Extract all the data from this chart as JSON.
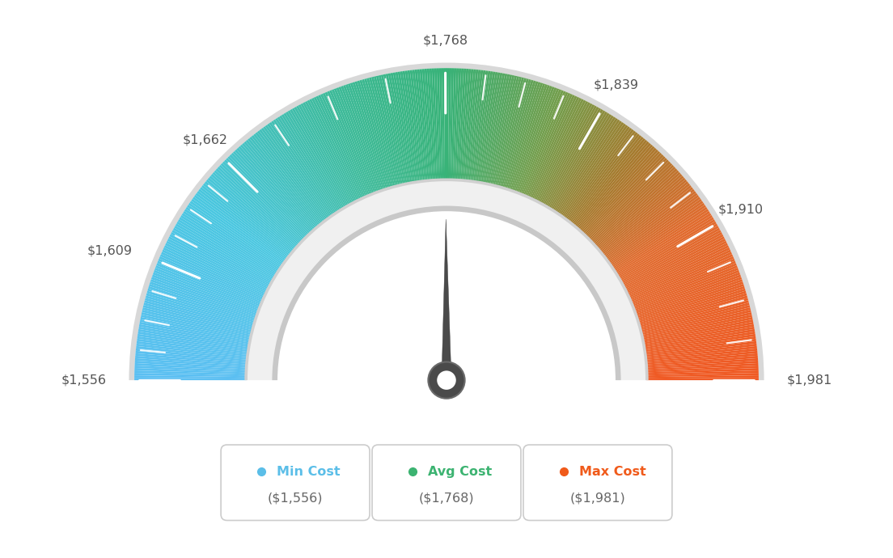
{
  "min_val": 1556,
  "avg_val": 1768,
  "max_val": 1981,
  "tick_labels": [
    "$1,556",
    "$1,609",
    "$1,662",
    "$1,768",
    "$1,839",
    "$1,910",
    "$1,981"
  ],
  "tick_values": [
    1556,
    1609,
    1662,
    1768,
    1839,
    1910,
    1981
  ],
  "legend_min_label": "Min Cost",
  "legend_avg_label": "Avg Cost",
  "legend_max_label": "Max Cost",
  "legend_min_val": "($1,556)",
  "legend_avg_val": "($1,768)",
  "legend_max_val": "($1,981)",
  "color_min": "#5bbee8",
  "color_avg": "#3cb371",
  "color_max": "#f05a1a",
  "background_color": "#ffffff",
  "color_stops": [
    [
      0.0,
      [
        0.36,
        0.75,
        0.95
      ]
    ],
    [
      0.2,
      [
        0.29,
        0.78,
        0.88
      ]
    ],
    [
      0.38,
      [
        0.24,
        0.73,
        0.6
      ]
    ],
    [
      0.5,
      [
        0.22,
        0.7,
        0.47
      ]
    ],
    [
      0.62,
      [
        0.45,
        0.62,
        0.3
      ]
    ],
    [
      0.72,
      [
        0.65,
        0.48,
        0.18
      ]
    ],
    [
      0.82,
      [
        0.88,
        0.42,
        0.18
      ]
    ],
    [
      1.0,
      [
        0.94,
        0.35,
        0.14
      ]
    ]
  ]
}
